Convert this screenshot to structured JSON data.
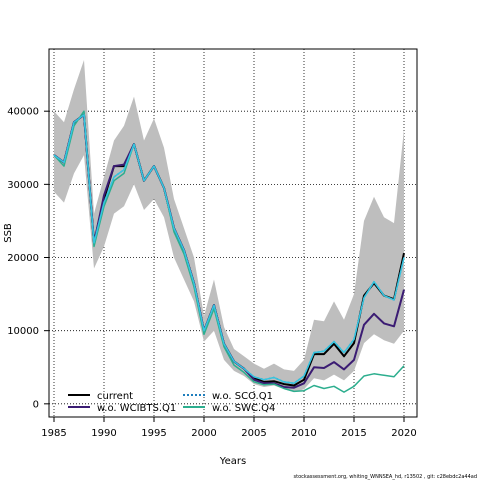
{
  "chart_data": {
    "type": "line",
    "xlabel": "Years",
    "ylabel": "SSB",
    "xlim": [
      1984.5,
      2021.3
    ],
    "ylim": [
      -1800,
      48500
    ],
    "x_ticks": [
      1985,
      1990,
      1995,
      2000,
      2005,
      2010,
      2015,
      2020
    ],
    "y_ticks": [
      0,
      10000,
      20000,
      30000,
      40000
    ],
    "grid": true,
    "legend_position": "bottom-left",
    "x": [
      1985,
      1986,
      1987,
      1988,
      1989,
      1990,
      1991,
      1992,
      1993,
      1994,
      1995,
      1996,
      1997,
      1998,
      1999,
      2000,
      2001,
      2002,
      2003,
      2004,
      2005,
      2006,
      2007,
      2008,
      2009,
      2010,
      2011,
      2012,
      2013,
      2014,
      2015,
      2016,
      2017,
      2018,
      2019,
      2020
    ],
    "band": {
      "color": "#bebebe",
      "upper": [
        40000,
        38500,
        43000,
        47000,
        26000,
        31000,
        36000,
        38000,
        42000,
        36000,
        39000,
        35000,
        28000,
        24000,
        20000,
        12000,
        17000,
        10500,
        7500,
        6500,
        5500,
        4800,
        5500,
        4700,
        4500,
        6000,
        11500,
        11300,
        14000,
        11500,
        15000,
        25000,
        28300,
        25500,
        24700,
        37500
      ],
      "lower": [
        29000,
        27500,
        31500,
        34000,
        18500,
        21500,
        26000,
        27000,
        30000,
        26500,
        28000,
        25500,
        20000,
        17000,
        14000,
        8500,
        10000,
        6000,
        4500,
        3800,
        2700,
        2300,
        2500,
        2000,
        1600,
        2000,
        3500,
        3200,
        4000,
        3200,
        4500,
        8300,
        9500,
        8700,
        8200,
        10000
      ]
    },
    "series": [
      {
        "name": "current",
        "color": "#000000",
        "style": "solid",
        "width": 2,
        "values": [
          34000,
          33000,
          38500,
          39500,
          22000,
          28000,
          32500,
          32500,
          35500,
          30500,
          32500,
          29500,
          24000,
          21000,
          16500,
          10000,
          13500,
          8200,
          5800,
          4800,
          3500,
          3000,
          3100,
          2700,
          2500,
          3300,
          6800,
          6800,
          8200,
          6500,
          8300,
          14800,
          16500,
          14800,
          14300,
          20600
        ]
      },
      {
        "name": "w.o. WCIBTS.Q1",
        "color": "#3b1c73",
        "style": "solid",
        "width": 2,
        "values": [
          34000,
          33000,
          38500,
          39500,
          22000,
          28500,
          32500,
          32700,
          35500,
          30500,
          32500,
          29500,
          24000,
          21000,
          16500,
          10000,
          13500,
          8200,
          5800,
          4800,
          3300,
          2800,
          2800,
          2300,
          2200,
          2800,
          5000,
          4900,
          5700,
          4700,
          6000,
          10800,
          12300,
          11000,
          10600,
          15600
        ]
      },
      {
        "name": "w.o. SCO.Q1",
        "color": "#1e7ebd",
        "style": "dotted",
        "width": 1.5,
        "values": [
          34000,
          33000,
          38500,
          39500,
          22000,
          27500,
          31000,
          32000,
          35500,
          30500,
          32500,
          29500,
          24000,
          21000,
          16500,
          10000,
          13500,
          8200,
          5800,
          4800,
          3700,
          3300,
          3600,
          3000,
          2800,
          3800,
          7000,
          7200,
          8500,
          7000,
          8800,
          14500,
          16700,
          14800,
          14200,
          20000
        ]
      },
      {
        "name": "w.o. SWC.Q4",
        "color": "#2cae8e",
        "style": "solid",
        "width": 1.5,
        "values": [
          34000,
          32500,
          38000,
          40000,
          21500,
          27000,
          30500,
          31500,
          35500,
          30500,
          32500,
          29500,
          23500,
          20500,
          16000,
          9500,
          13000,
          7800,
          5300,
          4300,
          3000,
          2600,
          2700,
          2100,
          1700,
          1800,
          2500,
          2100,
          2400,
          1600,
          2400,
          3800,
          4100,
          3900,
          3700,
          5200
        ]
      },
      {
        "name": "w.o. SCO.Q1 (cyan)",
        "color": "#35c5e0",
        "style": "solid",
        "width": 1.5,
        "values": [
          34000,
          33000,
          38500,
          39500,
          22000,
          27500,
          31000,
          32000,
          35500,
          30500,
          32500,
          29500,
          24000,
          21000,
          16500,
          10000,
          13500,
          8200,
          5800,
          4800,
          3700,
          3300,
          3600,
          3000,
          2800,
          3800,
          7000,
          7200,
          8500,
          7000,
          8800,
          14500,
          16700,
          14800,
          14200,
          20000
        ]
      }
    ],
    "legend": [
      {
        "label": "current",
        "color": "#000000",
        "style": "solid"
      },
      {
        "label": "w.o. WCIBTS.Q1",
        "color": "#3b1c73",
        "style": "solid"
      },
      {
        "label": "w.o. SCO.Q1",
        "color": "#1e7ebd",
        "style": "dotted"
      },
      {
        "label": "w.o. SWC.Q4",
        "color": "#2cae8e",
        "style": "solid"
      }
    ],
    "credit": "stockassessment.org, whiting_WNNSEA_hd, r13502 , git: c28ebdc2a44ad"
  }
}
